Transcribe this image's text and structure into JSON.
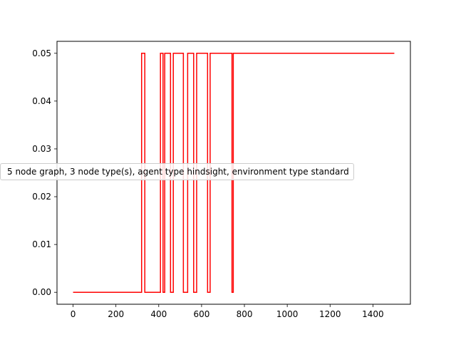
{
  "chart_data": {
    "type": "line",
    "title": "",
    "xlabel": "",
    "ylabel": "",
    "xlim": [
      -75,
      1575
    ],
    "ylim": [
      -0.0025,
      0.0525
    ],
    "xticks": [
      0,
      200,
      400,
      600,
      800,
      1000,
      1200,
      1400
    ],
    "yticks": [
      0.0,
      0.01,
      0.02,
      0.03,
      0.04,
      0.05
    ],
    "ytick_labels": [
      "0.00",
      "0.01",
      "0.02",
      "0.03",
      "0.04",
      "0.05"
    ],
    "grid": false,
    "step": true,
    "series": [
      {
        "name": "5 node graph, 3 node type(s), agent type hindsight, environment type standard",
        "color": "#ff0000",
        "points": [
          [
            0,
            0
          ],
          [
            320,
            0
          ],
          [
            320,
            0.05
          ],
          [
            335,
            0.05
          ],
          [
            335,
            0
          ],
          [
            408,
            0
          ],
          [
            408,
            0.05
          ],
          [
            420,
            0.05
          ],
          [
            420,
            0
          ],
          [
            428,
            0
          ],
          [
            428,
            0.05
          ],
          [
            455,
            0.05
          ],
          [
            455,
            0
          ],
          [
            468,
            0
          ],
          [
            468,
            0.05
          ],
          [
            515,
            0.05
          ],
          [
            515,
            0
          ],
          [
            535,
            0
          ],
          [
            535,
            0.05
          ],
          [
            563,
            0.05
          ],
          [
            563,
            0
          ],
          [
            577,
            0
          ],
          [
            577,
            0.05
          ],
          [
            628,
            0.05
          ],
          [
            628,
            0
          ],
          [
            640,
            0
          ],
          [
            640,
            0.05
          ],
          [
            742,
            0.05
          ],
          [
            742,
            0
          ],
          [
            748,
            0
          ],
          [
            748,
            0.05
          ],
          [
            1500,
            0.05
          ]
        ]
      }
    ],
    "legend": {
      "placement": "center-left"
    }
  }
}
